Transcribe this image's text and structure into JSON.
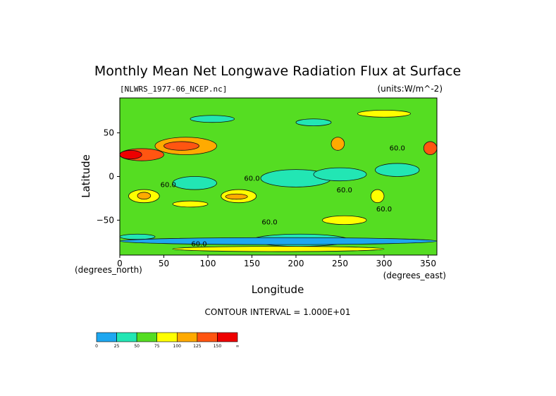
{
  "chart_data": {
    "type": "heatmap",
    "title": "Monthly Mean Net Longwave Radiation Flux at Surface",
    "file_label": "[NLWRS_1977-06_NCEP.nc]",
    "units_label": "(units:W/m^-2)",
    "xlabel": "Longitude",
    "ylabel": "Latitude",
    "x_unit": "(degrees_east)",
    "y_unit": "(degrees_north)",
    "xlim": [
      0,
      360
    ],
    "ylim": [
      -90,
      90
    ],
    "x_ticks": [
      0,
      50,
      100,
      150,
      200,
      250,
      300,
      350
    ],
    "y_ticks": [
      50,
      0,
      -50
    ],
    "contour_interval_text": "CONTOUR INTERVAL = 1.000E+01",
    "contour_labels": [
      "60.0",
      "60.0",
      "60.0",
      "60.0",
      "60.0",
      "60.0",
      "60.0"
    ],
    "colorbar": {
      "bounds": [
        "0",
        "25",
        "50",
        "75",
        "100",
        "125",
        "150",
        "∞"
      ],
      "colors": [
        "#1ea7f0",
        "#22e6b4",
        "#55dd22",
        "#ffff00",
        "#ffaa00",
        "#ff5511",
        "#ee0000"
      ]
    },
    "regions": [
      {
        "lon": [
          0,
          360
        ],
        "lat": [
          -90,
          90
        ],
        "level": 2
      },
      {
        "lon": [
          160,
          240
        ],
        "lat": [
          -12,
          8
        ],
        "level": 1
      },
      {
        "lon": [
          220,
          280
        ],
        "lat": [
          -5,
          10
        ],
        "level": 1
      },
      {
        "lon": [
          60,
          110
        ],
        "lat": [
          -15,
          0
        ],
        "level": 1
      },
      {
        "lon": [
          290,
          340
        ],
        "lat": [
          0,
          15
        ],
        "level": 1
      },
      {
        "lon": [
          80,
          130
        ],
        "lat": [
          62,
          70
        ],
        "level": 1
      },
      {
        "lon": [
          200,
          240
        ],
        "lat": [
          58,
          66
        ],
        "level": 1
      },
      {
        "lon": [
          0,
          40
        ],
        "lat": [
          -72,
          -66
        ],
        "level": 1
      },
      {
        "lon": [
          150,
          260
        ],
        "lat": [
          -80,
          -66
        ],
        "level": 1
      },
      {
        "lon": [
          0,
          50
        ],
        "lat": [
          18,
          32
        ],
        "level": 5
      },
      {
        "lon": [
          0,
          25
        ],
        "lat": [
          20,
          30
        ],
        "level": 6
      },
      {
        "lon": [
          40,
          110
        ],
        "lat": [
          25,
          45
        ],
        "level": 4
      },
      {
        "lon": [
          50,
          90
        ],
        "lat": [
          30,
          40
        ],
        "level": 5
      },
      {
        "lon": [
          10,
          45
        ],
        "lat": [
          -30,
          -15
        ],
        "level": 3
      },
      {
        "lon": [
          20,
          35
        ],
        "lat": [
          -26,
          -18
        ],
        "level": 4
      },
      {
        "lon": [
          115,
          155
        ],
        "lat": [
          -30,
          -15
        ],
        "level": 3
      },
      {
        "lon": [
          120,
          145
        ],
        "lat": [
          -26,
          -20
        ],
        "level": 4
      },
      {
        "lon": [
          240,
          255
        ],
        "lat": [
          30,
          45
        ],
        "level": 4
      },
      {
        "lon": [
          285,
          300
        ],
        "lat": [
          -30,
          -15
        ],
        "level": 3
      },
      {
        "lon": [
          230,
          280
        ],
        "lat": [
          -55,
          -45
        ],
        "level": 3
      },
      {
        "lon": [
          345,
          360
        ],
        "lat": [
          25,
          40
        ],
        "level": 5
      },
      {
        "lon": [
          270,
          330
        ],
        "lat": [
          68,
          76
        ],
        "level": 3
      },
      {
        "lon": [
          60,
          100
        ],
        "lat": [
          -35,
          -28
        ],
        "level": 3
      },
      {
        "lon": [
          0,
          360
        ],
        "lat": [
          -78,
          -70
        ],
        "level": 0
      },
      {
        "lon": [
          60,
          300
        ],
        "lat": [
          -86,
          -80
        ],
        "level": 3
      }
    ]
  }
}
